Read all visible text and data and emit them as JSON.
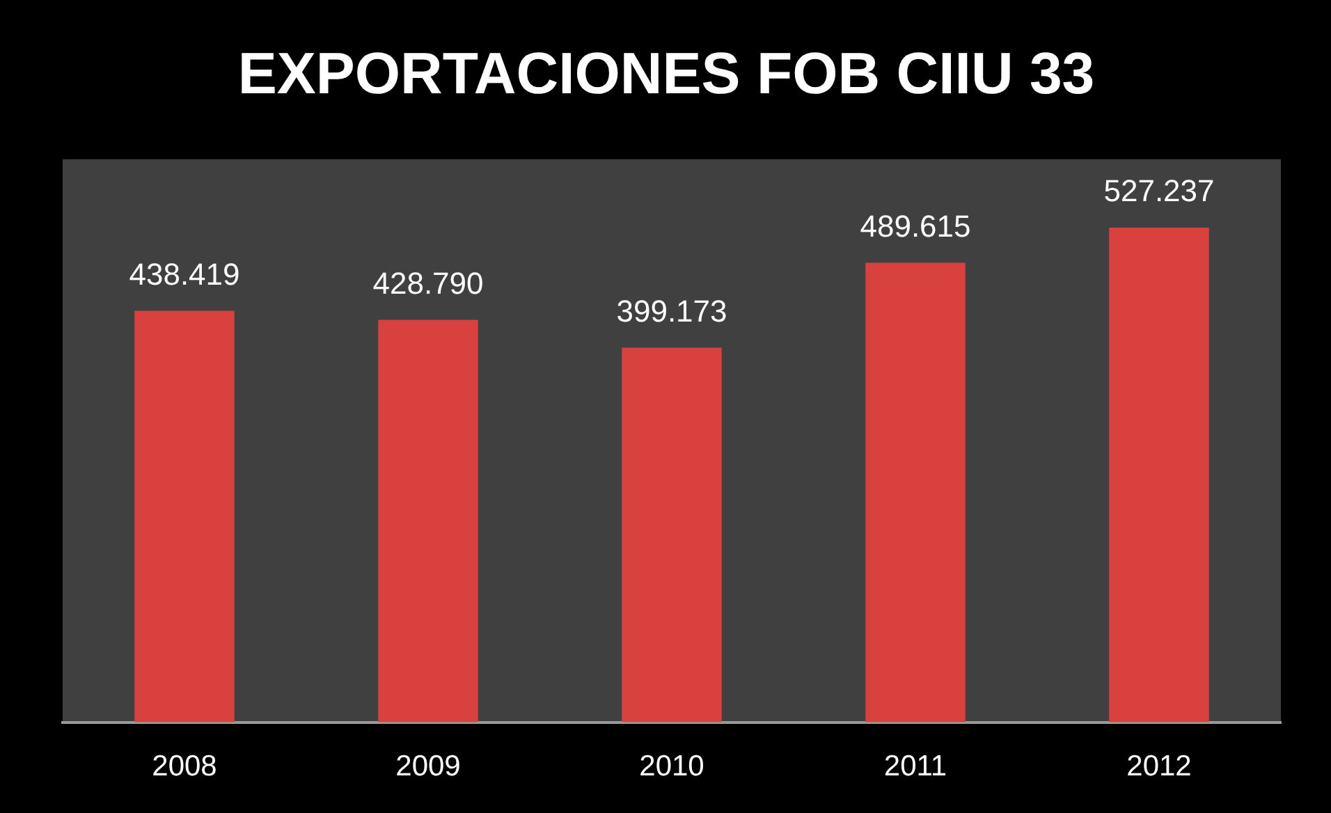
{
  "chart_data": {
    "type": "bar",
    "title": "EXPORTACIONES FOB CIIU 33",
    "categories": [
      "2008",
      "2009",
      "2010",
      "2011",
      "2012"
    ],
    "values": [
      438419,
      428790,
      399173,
      489615,
      527237
    ],
    "value_labels": [
      "438.419",
      "428.790",
      "399.173",
      "489.615",
      "527.237"
    ],
    "color": "#d9413e",
    "ylim": [
      0,
      600000
    ],
    "tick_labels": "x"
  }
}
